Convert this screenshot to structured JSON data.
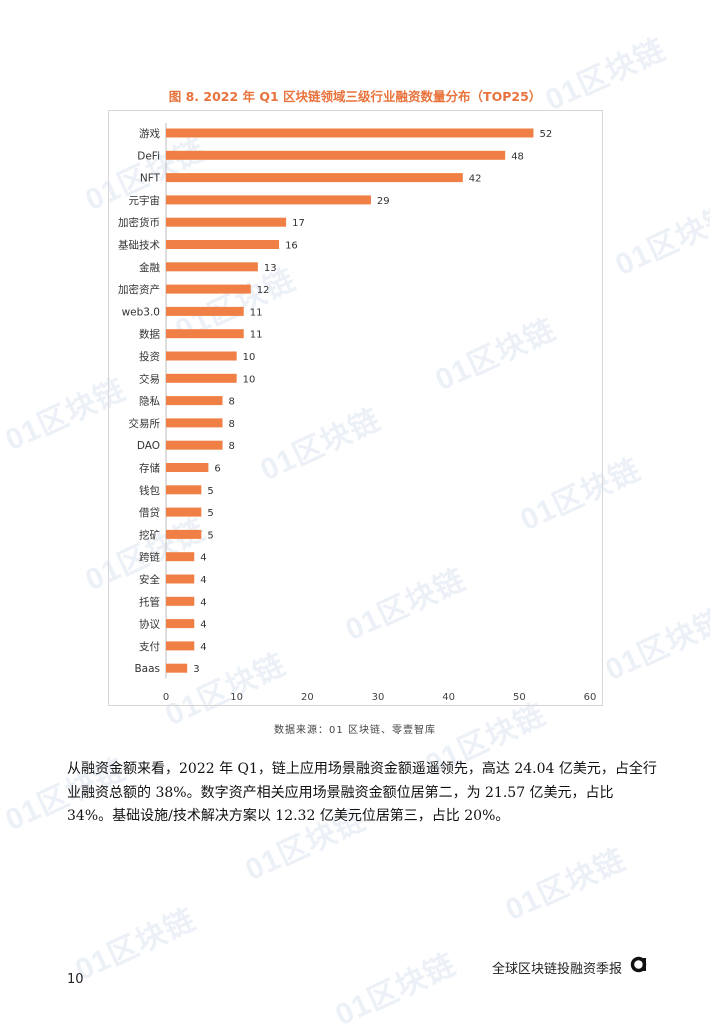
{
  "chart_data": {
    "type": "bar",
    "orientation": "horizontal",
    "title": "图 8.  2022 年 Q1 区块链领域三级行业融资数量分布（TOP25）",
    "categories": [
      "游戏",
      "DeFi",
      "NFT",
      "元宇宙",
      "加密货币",
      "基础技术",
      "金融",
      "加密资产",
      "web3.0",
      "数据",
      "投资",
      "交易",
      "隐私",
      "交易所",
      "DAO",
      "存储",
      "钱包",
      "借贷",
      "挖矿",
      "跨链",
      "安全",
      "托管",
      "协议",
      "支付",
      "Baas"
    ],
    "values": [
      52,
      48,
      42,
      29,
      17,
      16,
      13,
      12,
      11,
      11,
      10,
      10,
      8,
      8,
      8,
      6,
      5,
      5,
      5,
      4,
      4,
      4,
      4,
      4,
      3
    ],
    "xlim": [
      0,
      60
    ],
    "xticks": [
      0,
      10,
      20,
      30,
      40,
      50,
      60
    ],
    "bar_color": "#f07f45",
    "grid": false
  },
  "source_text": "数据来源：01 区块链、零壹智库",
  "paragraph": "从融资金额来看，2022 年 Q1，链上应用场景融资金额遥遥领先，高达 24.04 亿美元，占全行业融资总额的 38%。数字资产相关应用场景融资金额位居第二，为 21.57 亿美元，占比 34%。基础设施/技术解决方案以 12.32 亿美元位居第三，占比 20%。",
  "footer": {
    "title": "全球区块链投融资季报",
    "page_number": "10"
  },
  "watermark_text": "01区块链"
}
